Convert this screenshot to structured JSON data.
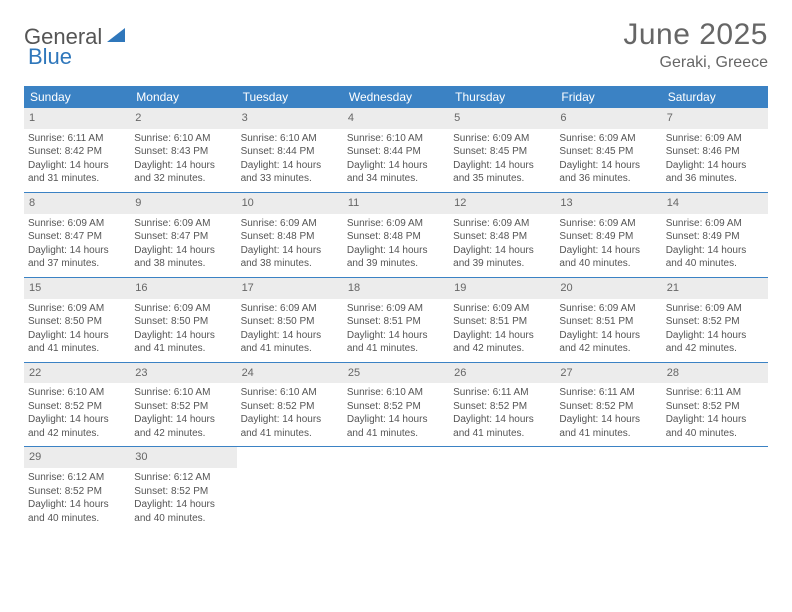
{
  "logo": {
    "word1": "General",
    "word2": "Blue"
  },
  "title": "June 2025",
  "location": "Geraki, Greece",
  "colors": {
    "header_bg": "#3b82c4",
    "header_text": "#ffffff",
    "daynum_bg": "#ececec",
    "text": "#555555",
    "rule": "#3b82c4"
  },
  "dayNames": [
    "Sunday",
    "Monday",
    "Tuesday",
    "Wednesday",
    "Thursday",
    "Friday",
    "Saturday"
  ],
  "weeks": [
    [
      {
        "n": "1",
        "sr": "Sunrise: 6:11 AM",
        "ss": "Sunset: 8:42 PM",
        "d1": "Daylight: 14 hours",
        "d2": "and 31 minutes."
      },
      {
        "n": "2",
        "sr": "Sunrise: 6:10 AM",
        "ss": "Sunset: 8:43 PM",
        "d1": "Daylight: 14 hours",
        "d2": "and 32 minutes."
      },
      {
        "n": "3",
        "sr": "Sunrise: 6:10 AM",
        "ss": "Sunset: 8:44 PM",
        "d1": "Daylight: 14 hours",
        "d2": "and 33 minutes."
      },
      {
        "n": "4",
        "sr": "Sunrise: 6:10 AM",
        "ss": "Sunset: 8:44 PM",
        "d1": "Daylight: 14 hours",
        "d2": "and 34 minutes."
      },
      {
        "n": "5",
        "sr": "Sunrise: 6:09 AM",
        "ss": "Sunset: 8:45 PM",
        "d1": "Daylight: 14 hours",
        "d2": "and 35 minutes."
      },
      {
        "n": "6",
        "sr": "Sunrise: 6:09 AM",
        "ss": "Sunset: 8:45 PM",
        "d1": "Daylight: 14 hours",
        "d2": "and 36 minutes."
      },
      {
        "n": "7",
        "sr": "Sunrise: 6:09 AM",
        "ss": "Sunset: 8:46 PM",
        "d1": "Daylight: 14 hours",
        "d2": "and 36 minutes."
      }
    ],
    [
      {
        "n": "8",
        "sr": "Sunrise: 6:09 AM",
        "ss": "Sunset: 8:47 PM",
        "d1": "Daylight: 14 hours",
        "d2": "and 37 minutes."
      },
      {
        "n": "9",
        "sr": "Sunrise: 6:09 AM",
        "ss": "Sunset: 8:47 PM",
        "d1": "Daylight: 14 hours",
        "d2": "and 38 minutes."
      },
      {
        "n": "10",
        "sr": "Sunrise: 6:09 AM",
        "ss": "Sunset: 8:48 PM",
        "d1": "Daylight: 14 hours",
        "d2": "and 38 minutes."
      },
      {
        "n": "11",
        "sr": "Sunrise: 6:09 AM",
        "ss": "Sunset: 8:48 PM",
        "d1": "Daylight: 14 hours",
        "d2": "and 39 minutes."
      },
      {
        "n": "12",
        "sr": "Sunrise: 6:09 AM",
        "ss": "Sunset: 8:48 PM",
        "d1": "Daylight: 14 hours",
        "d2": "and 39 minutes."
      },
      {
        "n": "13",
        "sr": "Sunrise: 6:09 AM",
        "ss": "Sunset: 8:49 PM",
        "d1": "Daylight: 14 hours",
        "d2": "and 40 minutes."
      },
      {
        "n": "14",
        "sr": "Sunrise: 6:09 AM",
        "ss": "Sunset: 8:49 PM",
        "d1": "Daylight: 14 hours",
        "d2": "and 40 minutes."
      }
    ],
    [
      {
        "n": "15",
        "sr": "Sunrise: 6:09 AM",
        "ss": "Sunset: 8:50 PM",
        "d1": "Daylight: 14 hours",
        "d2": "and 41 minutes."
      },
      {
        "n": "16",
        "sr": "Sunrise: 6:09 AM",
        "ss": "Sunset: 8:50 PM",
        "d1": "Daylight: 14 hours",
        "d2": "and 41 minutes."
      },
      {
        "n": "17",
        "sr": "Sunrise: 6:09 AM",
        "ss": "Sunset: 8:50 PM",
        "d1": "Daylight: 14 hours",
        "d2": "and 41 minutes."
      },
      {
        "n": "18",
        "sr": "Sunrise: 6:09 AM",
        "ss": "Sunset: 8:51 PM",
        "d1": "Daylight: 14 hours",
        "d2": "and 41 minutes."
      },
      {
        "n": "19",
        "sr": "Sunrise: 6:09 AM",
        "ss": "Sunset: 8:51 PM",
        "d1": "Daylight: 14 hours",
        "d2": "and 42 minutes."
      },
      {
        "n": "20",
        "sr": "Sunrise: 6:09 AM",
        "ss": "Sunset: 8:51 PM",
        "d1": "Daylight: 14 hours",
        "d2": "and 42 minutes."
      },
      {
        "n": "21",
        "sr": "Sunrise: 6:09 AM",
        "ss": "Sunset: 8:52 PM",
        "d1": "Daylight: 14 hours",
        "d2": "and 42 minutes."
      }
    ],
    [
      {
        "n": "22",
        "sr": "Sunrise: 6:10 AM",
        "ss": "Sunset: 8:52 PM",
        "d1": "Daylight: 14 hours",
        "d2": "and 42 minutes."
      },
      {
        "n": "23",
        "sr": "Sunrise: 6:10 AM",
        "ss": "Sunset: 8:52 PM",
        "d1": "Daylight: 14 hours",
        "d2": "and 42 minutes."
      },
      {
        "n": "24",
        "sr": "Sunrise: 6:10 AM",
        "ss": "Sunset: 8:52 PM",
        "d1": "Daylight: 14 hours",
        "d2": "and 41 minutes."
      },
      {
        "n": "25",
        "sr": "Sunrise: 6:10 AM",
        "ss": "Sunset: 8:52 PM",
        "d1": "Daylight: 14 hours",
        "d2": "and 41 minutes."
      },
      {
        "n": "26",
        "sr": "Sunrise: 6:11 AM",
        "ss": "Sunset: 8:52 PM",
        "d1": "Daylight: 14 hours",
        "d2": "and 41 minutes."
      },
      {
        "n": "27",
        "sr": "Sunrise: 6:11 AM",
        "ss": "Sunset: 8:52 PM",
        "d1": "Daylight: 14 hours",
        "d2": "and 41 minutes."
      },
      {
        "n": "28",
        "sr": "Sunrise: 6:11 AM",
        "ss": "Sunset: 8:52 PM",
        "d1": "Daylight: 14 hours",
        "d2": "and 40 minutes."
      }
    ],
    [
      {
        "n": "29",
        "sr": "Sunrise: 6:12 AM",
        "ss": "Sunset: 8:52 PM",
        "d1": "Daylight: 14 hours",
        "d2": "and 40 minutes."
      },
      {
        "n": "30",
        "sr": "Sunrise: 6:12 AM",
        "ss": "Sunset: 8:52 PM",
        "d1": "Daylight: 14 hours",
        "d2": "and 40 minutes."
      },
      {
        "empty": true
      },
      {
        "empty": true
      },
      {
        "empty": true
      },
      {
        "empty": true
      },
      {
        "empty": true
      }
    ]
  ]
}
